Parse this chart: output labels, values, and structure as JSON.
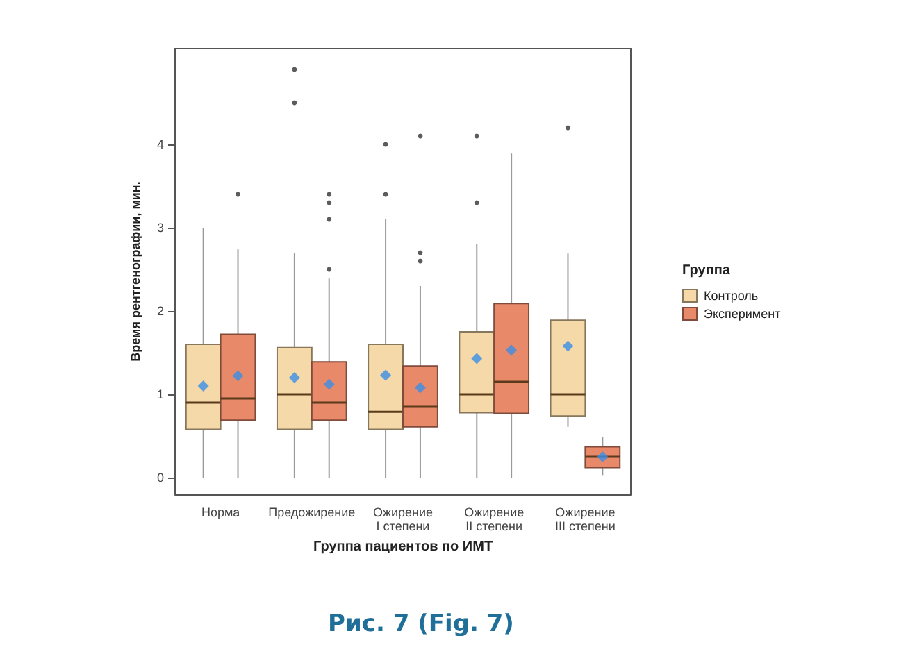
{
  "chart_data": {
    "type": "box",
    "xlabel": "Группа пациентов по ИМТ",
    "ylabel": "Время рентгенографии, мин.",
    "legend_title": "Группа",
    "legend": "right",
    "grid": false,
    "marker": "diamond",
    "categories": [
      "Норма",
      "Предожирение",
      "Ожирение\nI степени",
      "Ожирение\nII степени",
      "Ожирение\nIII степени"
    ],
    "ylim": [
      -0.2,
      5.15
    ],
    "yticks": [
      0,
      1,
      2,
      3,
      4
    ],
    "annotations": [
      "Рис. 7 (Fig. 7)"
    ],
    "series": [
      {
        "name": "Контроль",
        "color": "#f5d9a8",
        "boxes": [
          {
            "low": 0,
            "q1": 0.58,
            "median": 0.9,
            "q3": 1.6,
            "high": 3.0,
            "mean": 1.1
          },
          {
            "low": 0,
            "q1": 0.58,
            "median": 1.0,
            "q3": 1.56,
            "high": 2.7,
            "mean": 1.2,
            "outliers": [
              4.5,
              4.9
            ]
          },
          {
            "low": 0,
            "q1": 0.58,
            "median": 0.79,
            "q3": 1.6,
            "high": 3.1,
            "mean": 1.23,
            "outliers": [
              3.4,
              4.0
            ]
          },
          {
            "low": 0,
            "q1": 0.78,
            "median": 1.0,
            "q3": 1.75,
            "high": 2.8,
            "mean": 1.43,
            "outliers": [
              3.3,
              4.1
            ]
          },
          {
            "low": 0.61,
            "q1": 0.74,
            "median": 1.0,
            "q3": 1.89,
            "high": 2.69,
            "mean": 1.58,
            "outliers": [
              4.2
            ]
          }
        ]
      },
      {
        "name": "Эксперимент",
        "color": "#e8896a",
        "boxes": [
          {
            "low": 0,
            "q1": 0.69,
            "median": 0.95,
            "q3": 1.72,
            "high": 2.74,
            "mean": 1.22,
            "outliers": [
              3.4
            ]
          },
          {
            "low": 0,
            "q1": 0.69,
            "median": 0.9,
            "q3": 1.39,
            "high": 2.39,
            "mean": 1.12,
            "outliers": [
              2.5,
              3.1,
              3.3,
              3.4
            ]
          },
          {
            "low": 0,
            "q1": 0.61,
            "median": 0.85,
            "q3": 1.34,
            "high": 2.3,
            "mean": 1.08,
            "outliers": [
              2.6,
              2.7,
              4.1
            ]
          },
          {
            "low": 0,
            "q1": 0.77,
            "median": 1.15,
            "q3": 2.09,
            "high": 3.89,
            "mean": 1.53
          },
          {
            "low": 0.03,
            "q1": 0.12,
            "median": 0.25,
            "q3": 0.37,
            "high": 0.49,
            "mean": 0.25
          }
        ]
      }
    ]
  }
}
